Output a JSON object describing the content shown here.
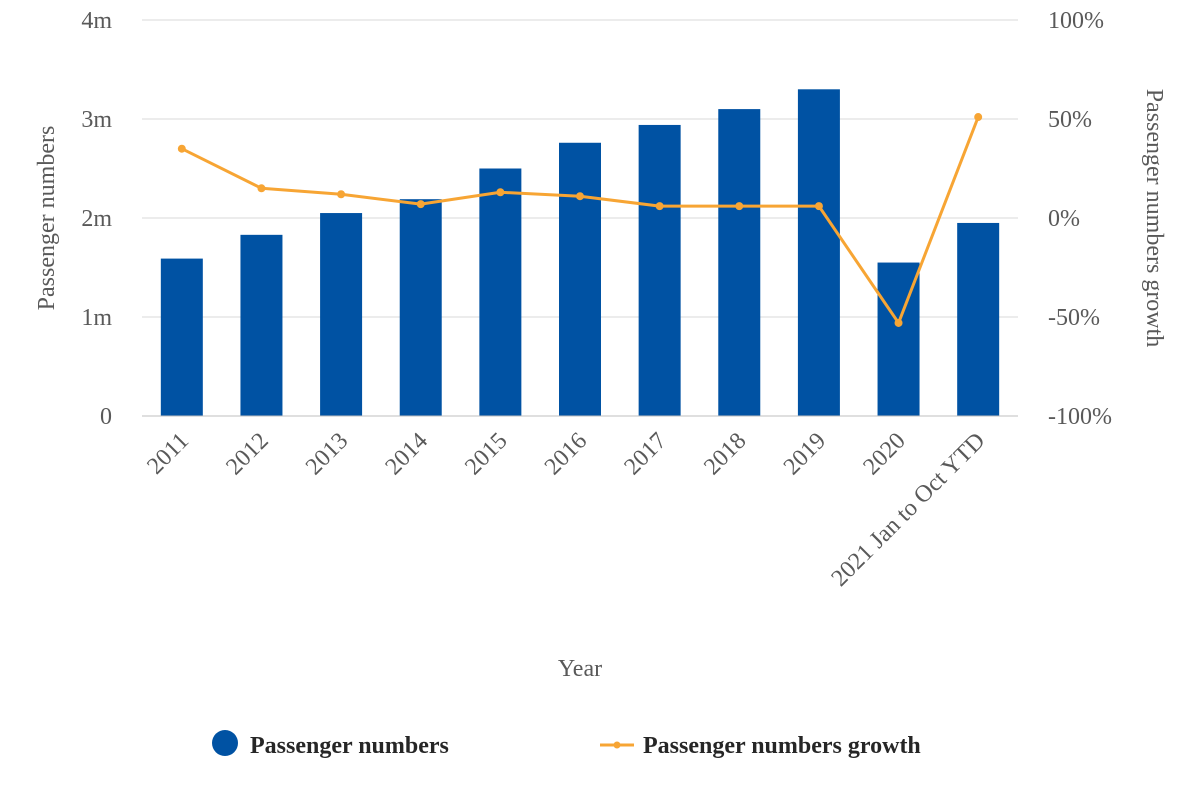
{
  "chart_data": {
    "type": "bar",
    "categories": [
      "2011",
      "2012",
      "2013",
      "2014",
      "2015",
      "2016",
      "2017",
      "2018",
      "2019",
      "2020",
      "2021 Jan to Oct YTD"
    ],
    "series": [
      {
        "name": "Passenger numbers",
        "type": "bar",
        "axis": "left",
        "color": "#0052a3",
        "values": [
          1.59,
          1.83,
          2.05,
          2.19,
          2.5,
          2.76,
          2.94,
          3.1,
          3.3,
          1.55,
          1.95
        ]
      },
      {
        "name": "Passenger numbers growth",
        "type": "line",
        "axis": "right",
        "color": "#f7a534",
        "values": [
          35,
          15,
          12,
          7,
          13,
          11,
          6,
          6,
          6,
          -53,
          51
        ]
      }
    ],
    "xlabel": "Year",
    "ylabel": "Passenger numbers",
    "y2label": "Passenger numbers growth",
    "ylim": [
      0,
      4
    ],
    "y2lim": [
      -100,
      100
    ],
    "yticks": [
      0,
      1,
      2,
      3,
      4
    ],
    "ytick_labels": [
      "0",
      "1m",
      "2m",
      "3m",
      "4m"
    ],
    "y2ticks": [
      -100,
      -50,
      0,
      50,
      100
    ],
    "y2tick_labels": [
      "-100%",
      "-50%",
      "0%",
      "50%",
      "100%"
    ],
    "grid": true,
    "legend_position": "bottom"
  }
}
